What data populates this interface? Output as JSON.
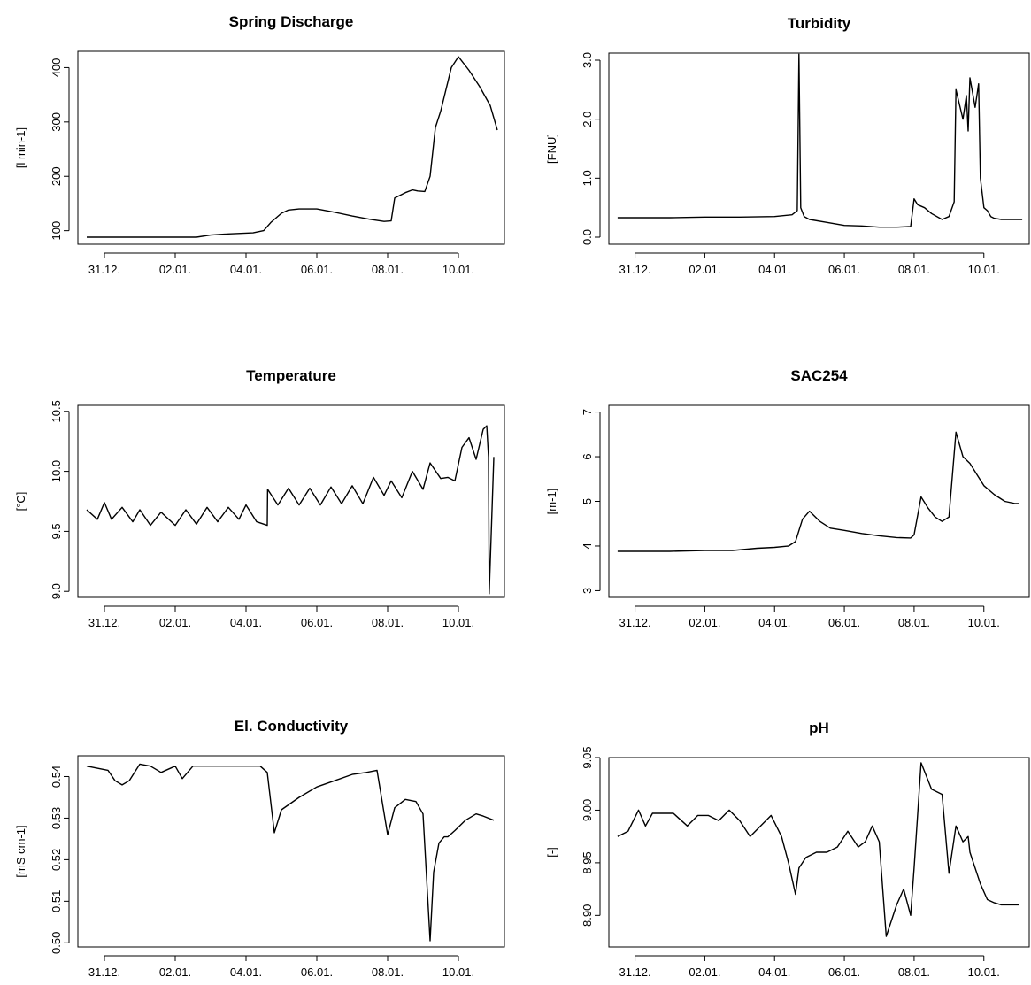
{
  "chart_data": [
    {
      "type": "line",
      "title": "Spring Discharge",
      "ylabel": "[l min-1]",
      "xlabel": "",
      "x_ticks": [
        "31.12.",
        "02.01.",
        "04.01.",
        "06.01.",
        "08.01.",
        "10.01."
      ],
      "x_tick_days": [
        1,
        3,
        5,
        7,
        9,
        11
      ],
      "xlim_days": [
        0.25,
        12.3
      ],
      "y_ticks": [
        100,
        200,
        300,
        400
      ],
      "y_tick_labels": [
        "100",
        "200",
        "300",
        "400"
      ],
      "ylim": [
        75,
        430
      ],
      "series": [
        {
          "x": [
            0.5,
            1,
            2,
            3,
            3.6,
            4,
            4.5,
            5.2,
            5.5,
            5.7,
            6,
            6.2,
            6.5,
            7,
            7.5,
            8,
            8.5,
            8.9,
            9.1,
            9.2,
            9.5,
            9.7,
            9.85,
            10.05,
            10.2,
            10.35,
            10.5,
            10.8,
            11,
            11.3,
            11.6,
            11.9,
            12.1
          ],
          "y": [
            88,
            88,
            88,
            88,
            88,
            92,
            94,
            96,
            100,
            115,
            132,
            138,
            140,
            140,
            134,
            127,
            121,
            117,
            118,
            160,
            170,
            175,
            173,
            172,
            200,
            290,
            320,
            400,
            420,
            395,
            365,
            330,
            285
          ]
        }
      ]
    },
    {
      "type": "line",
      "title": "Turbidity",
      "ylabel": "[FNU]",
      "xlabel": "",
      "x_ticks": [
        "31.12.",
        "02.01.",
        "04.01.",
        "06.01.",
        "08.01.",
        "10.01."
      ],
      "x_tick_days": [
        1,
        3,
        5,
        7,
        9,
        11
      ],
      "xlim_days": [
        0.25,
        12.3
      ],
      "y_ticks": [
        0,
        1,
        2,
        3
      ],
      "y_tick_labels": [
        "0.0",
        "1.0",
        "2.0",
        "3.0"
      ],
      "ylim": [
        -0.12,
        3.12
      ],
      "series": [
        {
          "x": [
            0.5,
            1,
            2,
            3,
            4,
            5,
            5.5,
            5.65,
            5.7,
            5.75,
            5.85,
            6,
            6.5,
            7,
            7.5,
            8,
            8.5,
            8.9,
            9.0,
            9.1,
            9.3,
            9.5,
            9.8,
            10.0,
            10.15,
            10.2,
            10.4,
            10.5,
            10.55,
            10.6,
            10.75,
            10.85,
            10.9,
            11.0,
            11.1,
            11.2,
            11.3,
            11.5,
            11.8,
            12.1
          ],
          "y": [
            0.33,
            0.33,
            0.33,
            0.34,
            0.34,
            0.35,
            0.38,
            0.45,
            3.1,
            0.5,
            0.35,
            0.3,
            0.25,
            0.2,
            0.19,
            0.17,
            0.17,
            0.18,
            0.65,
            0.55,
            0.5,
            0.4,
            0.3,
            0.35,
            0.6,
            2.5,
            2.0,
            2.4,
            1.8,
            2.7,
            2.2,
            2.6,
            1.0,
            0.5,
            0.45,
            0.35,
            0.32,
            0.3,
            0.3,
            0.3
          ]
        }
      ]
    },
    {
      "type": "line",
      "title": "Temperature",
      "ylabel": "[°C]",
      "xlabel": "",
      "x_ticks": [
        "31.12.",
        "02.01.",
        "04.01.",
        "06.01.",
        "08.01.",
        "10.01."
      ],
      "x_tick_days": [
        1,
        3,
        5,
        7,
        9,
        11
      ],
      "xlim_days": [
        0.25,
        12.3
      ],
      "y_ticks": [
        9.0,
        9.5,
        10.0,
        10.5
      ],
      "y_tick_labels": [
        "9.0",
        "9.5",
        "10.0",
        "10.5"
      ],
      "ylim": [
        8.95,
        10.55
      ],
      "series": [
        {
          "x": [
            0.5,
            0.8,
            1,
            1.2,
            1.5,
            1.8,
            2,
            2.3,
            2.6,
            3,
            3.3,
            3.6,
            3.9,
            4.2,
            4.5,
            4.8,
            5,
            5.3,
            5.6,
            5.61,
            5.9,
            6.2,
            6.5,
            6.8,
            7.1,
            7.4,
            7.7,
            8,
            8.3,
            8.6,
            8.9,
            9.1,
            9.4,
            9.7,
            10,
            10.2,
            10.5,
            10.7,
            10.9,
            11.1,
            11.3,
            11.5,
            11.7,
            11.8,
            11.85,
            11.87,
            12.0
          ],
          "y": [
            9.68,
            9.6,
            9.74,
            9.6,
            9.7,
            9.58,
            9.68,
            9.55,
            9.66,
            9.55,
            9.68,
            9.56,
            9.7,
            9.58,
            9.7,
            9.6,
            9.72,
            9.58,
            9.55,
            9.85,
            9.72,
            9.86,
            9.72,
            9.86,
            9.72,
            9.87,
            9.73,
            9.88,
            9.73,
            9.95,
            9.8,
            9.92,
            9.78,
            10.0,
            9.85,
            10.07,
            9.94,
            9.95,
            9.92,
            10.2,
            10.28,
            10.1,
            10.35,
            10.38,
            10.12,
            8.98,
            10.12
          ]
        }
      ]
    },
    {
      "type": "line",
      "title": "SAC254",
      "ylabel": "[m-1]",
      "xlabel": "",
      "x_ticks": [
        "31.12.",
        "02.01.",
        "04.01.",
        "06.01.",
        "08.01.",
        "10.01."
      ],
      "x_tick_days": [
        1,
        3,
        5,
        7,
        9,
        11
      ],
      "xlim_days": [
        0.25,
        12.3
      ],
      "y_ticks": [
        3,
        4,
        5,
        6,
        7
      ],
      "y_tick_labels": [
        "3",
        "4",
        "5",
        "6",
        "7"
      ],
      "ylim": [
        2.85,
        7.15
      ],
      "series": [
        {
          "x": [
            0.5,
            1,
            2,
            3,
            3.8,
            4.5,
            5,
            5.4,
            5.6,
            5.8,
            6,
            6.3,
            6.6,
            7,
            7.5,
            8,
            8.5,
            8.9,
            9.0,
            9.2,
            9.4,
            9.6,
            9.8,
            10.0,
            10.2,
            10.4,
            10.6,
            10.8,
            11,
            11.3,
            11.6,
            11.9,
            12.0
          ],
          "y": [
            3.88,
            3.88,
            3.88,
            3.9,
            3.9,
            3.95,
            3.97,
            4.0,
            4.1,
            4.6,
            4.78,
            4.55,
            4.4,
            4.35,
            4.28,
            4.23,
            4.19,
            4.18,
            4.25,
            5.1,
            4.85,
            4.65,
            4.55,
            4.65,
            6.55,
            6.0,
            5.85,
            5.6,
            5.35,
            5.15,
            5.0,
            4.95,
            4.95
          ]
        }
      ]
    },
    {
      "type": "line",
      "title": "El. Conductivity",
      "ylabel": "[mS cm-1]",
      "xlabel": "",
      "x_ticks": [
        "31.12.",
        "02.01.",
        "04.01.",
        "06.01.",
        "08.01.",
        "10.01."
      ],
      "x_tick_days": [
        1,
        3,
        5,
        7,
        9,
        11
      ],
      "xlim_days": [
        0.25,
        12.3
      ],
      "y_ticks": [
        0.5,
        0.51,
        0.52,
        0.53,
        0.54
      ],
      "y_tick_labels": [
        "0.50",
        "0.51",
        "0.52",
        "0.53",
        "0.54"
      ],
      "ylim": [
        0.499,
        0.545
      ],
      "series": [
        {
          "x": [
            0.5,
            0.8,
            1.1,
            1.3,
            1.5,
            1.7,
            2,
            2.3,
            2.6,
            3,
            3.2,
            3.5,
            4,
            4.5,
            5,
            5.4,
            5.6,
            5.8,
            6,
            6.5,
            7,
            7.5,
            8,
            8.4,
            8.7,
            9,
            9.2,
            9.5,
            9.8,
            10.0,
            10.2,
            10.3,
            10.45,
            10.6,
            10.7,
            10.9,
            11.2,
            11.5,
            11.7,
            12.0
          ],
          "y": [
            0.5425,
            0.542,
            0.5415,
            0.539,
            0.538,
            0.539,
            0.543,
            0.5425,
            0.541,
            0.5425,
            0.5395,
            0.5425,
            0.5425,
            0.5425,
            0.5425,
            0.5425,
            0.541,
            0.5265,
            0.532,
            0.535,
            0.5375,
            0.539,
            0.5405,
            0.541,
            0.5415,
            0.526,
            0.5325,
            0.5345,
            0.534,
            0.531,
            0.5005,
            0.517,
            0.524,
            0.5255,
            0.5255,
            0.527,
            0.5295,
            0.531,
            0.5305,
            0.5295
          ]
        }
      ]
    },
    {
      "type": "line",
      "title": "pH",
      "ylabel": "[-]",
      "xlabel": "",
      "x_ticks": [
        "31.12.",
        "02.01.",
        "04.01.",
        "06.01.",
        "08.01.",
        "10.01."
      ],
      "x_tick_days": [
        1,
        3,
        5,
        7,
        9,
        11
      ],
      "xlim_days": [
        0.25,
        12.3
      ],
      "y_ticks": [
        8.9,
        8.95,
        9.0,
        9.05
      ],
      "y_tick_labels": [
        "8.90",
        "8.95",
        "9.00",
        "9.05"
      ],
      "ylim": [
        8.87,
        9.05
      ],
      "series": [
        {
          "x": [
            0.5,
            0.8,
            1.1,
            1.3,
            1.5,
            1.8,
            2.1,
            2.5,
            2.8,
            3.1,
            3.4,
            3.7,
            4.0,
            4.3,
            4.6,
            4.9,
            5.2,
            5.4,
            5.6,
            5.7,
            5.9,
            6.2,
            6.5,
            6.8,
            7.1,
            7.4,
            7.6,
            7.8,
            8.0,
            8.2,
            8.5,
            8.7,
            8.9,
            9.0,
            9.2,
            9.5,
            9.8,
            10.0,
            10.2,
            10.4,
            10.55,
            10.6,
            10.7,
            10.9,
            11.1,
            11.3,
            11.5,
            11.8,
            12.0
          ],
          "y": [
            8.975,
            8.98,
            9.0,
            8.985,
            8.997,
            8.997,
            8.997,
            8.985,
            8.995,
            8.995,
            8.99,
            9.0,
            8.99,
            8.975,
            8.985,
            8.995,
            8.975,
            8.95,
            8.92,
            8.945,
            8.955,
            8.96,
            8.96,
            8.965,
            8.98,
            8.965,
            8.97,
            8.985,
            8.97,
            8.88,
            8.91,
            8.925,
            8.9,
            8.945,
            9.045,
            9.02,
            9.015,
            8.94,
            8.985,
            8.97,
            8.975,
            8.96,
            8.95,
            8.93,
            8.915,
            8.912,
            8.91,
            8.91,
            8.91
          ]
        }
      ]
    }
  ]
}
